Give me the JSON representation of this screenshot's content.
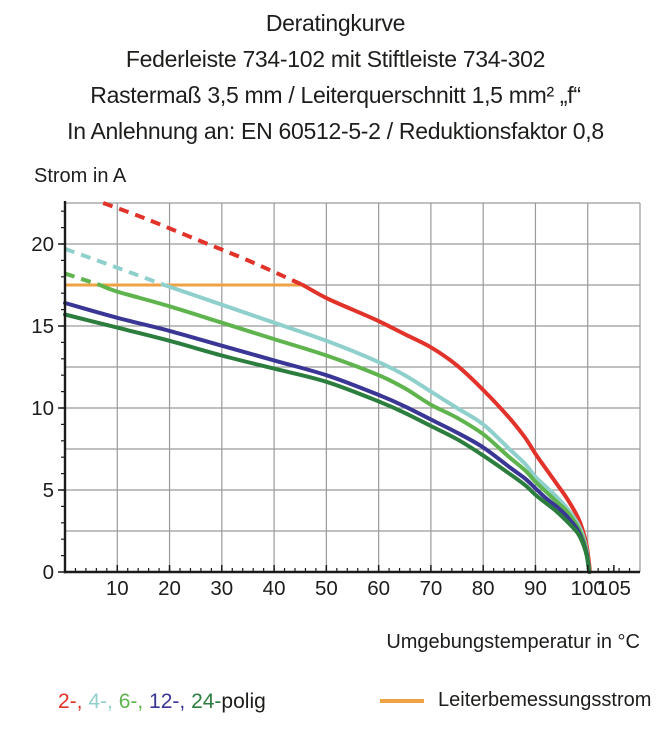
{
  "title": {
    "line1": "Deratingkurve",
    "line2": "Federleiste 734-102 mit Stiftleiste 734-302",
    "line3": "Rastermaß 3,5 mm / Leiterquerschnitt 1,5 mm² „f“",
    "line4": "In Anlehnung an: EN 60512-5-2 / Reduktionsfaktor 0,8"
  },
  "axes": {
    "y_label": "Strom in A",
    "x_label": "Umgebungstemperatur in °C"
  },
  "legend": {
    "pole_items": [
      {
        "label": "2-, ",
        "color": "#e2332a"
      },
      {
        "label": "4-, ",
        "color": "#8fd0cc"
      },
      {
        "label": "6-, ",
        "color": "#5fb44e"
      },
      {
        "label": "12-, ",
        "color": "#3a3696"
      },
      {
        "label": "24-",
        "color": "#2c7e3e"
      }
    ],
    "suffix": "polig",
    "suffix_color": "#1d1d1b",
    "rated_label": "Leiterbemessungsstrom",
    "rated_color": "#efa243"
  },
  "chart_data": {
    "type": "line",
    "title": "Deratingkurve",
    "xlabel": "Umgebungstemperatur in °C",
    "ylabel": "Strom in A",
    "xlim": [
      0,
      110
    ],
    "ylim": [
      0,
      22.5
    ],
    "x_grid_step": 10,
    "y_grid_step": 2.5,
    "x_tick_labels": [
      10,
      20,
      30,
      40,
      50,
      60,
      70,
      80,
      90,
      100,
      105
    ],
    "y_tick_labels": [
      0,
      5,
      10,
      15,
      20
    ],
    "grid_color": "#9a9a9a",
    "axis_color": "#1b1b1b",
    "rated_line": {
      "label": "Leiterbemessungsstrom",
      "value_a": 17.5,
      "x_range_c": [
        0,
        45.5
      ],
      "color": "#efa243"
    },
    "dash_note": "curves are dashed above the rated current 17.5 A, solid below",
    "series": [
      {
        "name": "2-polig",
        "color": "#e2332a",
        "dashed": [
          [
            7.3,
            22.5
          ],
          [
            15,
            21.6
          ],
          [
            25,
            20.3
          ],
          [
            35,
            19.0
          ],
          [
            45.5,
            17.5
          ]
        ],
        "solid": [
          [
            45.5,
            17.5
          ],
          [
            50,
            16.7
          ],
          [
            55,
            16.0
          ],
          [
            60,
            15.3
          ],
          [
            65,
            14.5
          ],
          [
            70,
            13.7
          ],
          [
            75,
            12.6
          ],
          [
            80,
            11.1
          ],
          [
            85,
            9.4
          ],
          [
            88,
            8.2
          ],
          [
            90,
            7.2
          ],
          [
            92,
            6.3
          ],
          [
            94,
            5.4
          ],
          [
            96,
            4.5
          ],
          [
            98,
            3.4
          ],
          [
            99,
            2.6
          ],
          [
            99.8,
            1.6
          ],
          [
            100.3,
            0.4
          ],
          [
            100.4,
            0
          ]
        ]
      },
      {
        "name": "4-polig",
        "color": "#8fd0cc",
        "dashed": [
          [
            0,
            19.7
          ],
          [
            7,
            18.9
          ],
          [
            13,
            18.2
          ],
          [
            19,
            17.5
          ]
        ],
        "solid": [
          [
            19,
            17.5
          ],
          [
            30,
            16.3
          ],
          [
            40,
            15.2
          ],
          [
            50,
            14.1
          ],
          [
            60,
            12.8
          ],
          [
            65,
            12.0
          ],
          [
            70,
            11.0
          ],
          [
            75,
            10.0
          ],
          [
            80,
            9.0
          ],
          [
            85,
            7.5
          ],
          [
            88,
            6.6
          ],
          [
            90,
            5.8
          ],
          [
            92,
            5.2
          ],
          [
            94,
            4.6
          ],
          [
            96,
            3.9
          ],
          [
            98,
            3.0
          ],
          [
            99,
            2.3
          ],
          [
            99.8,
            1.3
          ],
          [
            100.2,
            0.3
          ],
          [
            100.3,
            0
          ]
        ]
      },
      {
        "name": "6-polig",
        "color": "#5fb44e",
        "dashed": [
          [
            0,
            18.2
          ],
          [
            6.7,
            17.5
          ]
        ],
        "solid": [
          [
            6.7,
            17.5
          ],
          [
            10,
            17.1
          ],
          [
            20,
            16.2
          ],
          [
            30,
            15.2
          ],
          [
            40,
            14.2
          ],
          [
            50,
            13.2
          ],
          [
            60,
            12.0
          ],
          [
            65,
            11.2
          ],
          [
            70,
            10.2
          ],
          [
            75,
            9.4
          ],
          [
            80,
            8.4
          ],
          [
            85,
            7.0
          ],
          [
            88,
            6.2
          ],
          [
            90,
            5.5
          ],
          [
            92,
            4.9
          ],
          [
            94,
            4.3
          ],
          [
            96,
            3.7
          ],
          [
            98,
            2.8
          ],
          [
            99,
            2.1
          ],
          [
            99.8,
            1.2
          ],
          [
            100.2,
            0.3
          ],
          [
            100.3,
            0
          ]
        ]
      },
      {
        "name": "12-polig",
        "color": "#3a3696",
        "dashed": [],
        "solid": [
          [
            0,
            16.4
          ],
          [
            10,
            15.5
          ],
          [
            20,
            14.7
          ],
          [
            30,
            13.8
          ],
          [
            40,
            12.9
          ],
          [
            50,
            12.0
          ],
          [
            60,
            10.8
          ],
          [
            65,
            10.1
          ],
          [
            70,
            9.3
          ],
          [
            75,
            8.5
          ],
          [
            80,
            7.6
          ],
          [
            85,
            6.4
          ],
          [
            88,
            5.7
          ],
          [
            90,
            5.1
          ],
          [
            92,
            4.5
          ],
          [
            94,
            4.0
          ],
          [
            96,
            3.4
          ],
          [
            98,
            2.6
          ],
          [
            99,
            1.9
          ],
          [
            99.8,
            1.1
          ],
          [
            100.2,
            0.2
          ],
          [
            100.3,
            0
          ]
        ]
      },
      {
        "name": "24-polig",
        "color": "#2c7e3e",
        "dashed": [],
        "solid": [
          [
            0,
            15.7
          ],
          [
            10,
            14.9
          ],
          [
            20,
            14.1
          ],
          [
            30,
            13.2
          ],
          [
            40,
            12.4
          ],
          [
            50,
            11.6
          ],
          [
            60,
            10.4
          ],
          [
            65,
            9.7
          ],
          [
            70,
            8.9
          ],
          [
            75,
            8.1
          ],
          [
            80,
            7.1
          ],
          [
            85,
            6.0
          ],
          [
            88,
            5.3
          ],
          [
            90,
            4.7
          ],
          [
            92,
            4.2
          ],
          [
            94,
            3.7
          ],
          [
            96,
            3.1
          ],
          [
            98,
            2.4
          ],
          [
            99,
            1.8
          ],
          [
            99.8,
            1.0
          ],
          [
            100.2,
            0.2
          ],
          [
            100.3,
            0
          ]
        ]
      }
    ]
  }
}
